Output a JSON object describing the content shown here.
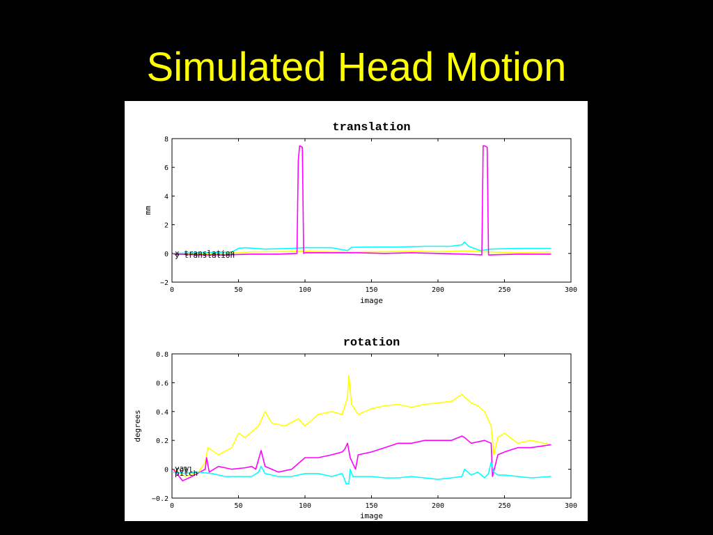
{
  "slide_title": "Simulated Head Motion",
  "colors": {
    "background": "#000000",
    "title": "#ffff00",
    "panel": "#ffffff",
    "series_yellow": "#ffff00",
    "series_magenta": "#ff00ff",
    "series_cyan": "#00ffff"
  },
  "chart_data": [
    {
      "type": "line",
      "title": "translation",
      "xlabel": "image",
      "ylabel": "mm",
      "xlim": [
        0,
        300
      ],
      "ylim": [
        -2,
        8
      ],
      "xticks": [
        0,
        50,
        100,
        150,
        200,
        250,
        300
      ],
      "yticks": [
        -2,
        0,
        2,
        4,
        6,
        8
      ],
      "grid": false,
      "legend_text": [
        "x translation",
        "y translation"
      ],
      "series": [
        {
          "color": "#ffff00",
          "x": [
            1,
            20,
            40,
            50,
            60,
            80,
            100,
            120,
            140,
            160,
            180,
            200,
            220,
            240,
            260,
            285
          ],
          "y": [
            0.0,
            -0.05,
            0.02,
            0.05,
            0.1,
            0.12,
            0.15,
            0.12,
            0.1,
            0.12,
            0.15,
            0.12,
            0.18,
            0.1,
            0.05,
            0.1
          ]
        },
        {
          "color": "#00ffff",
          "x": [
            1,
            20,
            45,
            50,
            55,
            70,
            90,
            100,
            120,
            132,
            135,
            150,
            170,
            190,
            210,
            218,
            220,
            223,
            232,
            240,
            260,
            285
          ],
          "y": [
            0.0,
            0.05,
            0.1,
            0.35,
            0.4,
            0.3,
            0.35,
            0.4,
            0.4,
            0.2,
            0.42,
            0.45,
            0.45,
            0.5,
            0.5,
            0.6,
            0.8,
            0.5,
            0.2,
            0.3,
            0.35,
            0.35
          ]
        },
        {
          "color": "#ff00ff",
          "x": [
            1,
            20,
            40,
            60,
            80,
            94,
            95,
            96,
            98,
            99,
            100,
            120,
            140,
            160,
            180,
            200,
            220,
            233,
            234,
            235,
            237,
            238,
            240,
            260,
            285
          ],
          "y": [
            -0.05,
            -0.1,
            -0.1,
            -0.05,
            -0.05,
            0.0,
            6.5,
            7.5,
            7.4,
            0.0,
            0.05,
            0.05,
            0.05,
            0.0,
            0.05,
            0.0,
            -0.05,
            -0.1,
            7.5,
            7.5,
            7.4,
            -0.1,
            -0.1,
            -0.05,
            -0.05
          ]
        }
      ]
    },
    {
      "type": "line",
      "title": "rotation",
      "xlabel": "image",
      "ylabel": "degrees",
      "xlim": [
        0,
        300
      ],
      "ylim": [
        -0.2,
        0.8
      ],
      "xticks": [
        0,
        50,
        100,
        150,
        200,
        250,
        300
      ],
      "yticks": [
        -0.2,
        0,
        0.2,
        0.4,
        0.6,
        0.8
      ],
      "grid": false,
      "legend_text": [
        "yaw",
        "roll",
        "pitch"
      ],
      "series": [
        {
          "color": "#ffff00",
          "x": [
            1,
            10,
            20,
            25,
            27,
            35,
            45,
            50,
            55,
            65,
            70,
            75,
            85,
            95,
            100,
            110,
            120,
            128,
            132,
            133,
            135,
            140,
            150,
            160,
            170,
            180,
            190,
            200,
            210,
            218,
            220,
            225,
            230,
            235,
            240,
            242,
            245,
            250,
            260,
            270,
            285
          ],
          "y": [
            0.0,
            -0.05,
            -0.02,
            0.05,
            0.15,
            0.1,
            0.15,
            0.25,
            0.22,
            0.3,
            0.4,
            0.32,
            0.3,
            0.35,
            0.3,
            0.38,
            0.4,
            0.38,
            0.5,
            0.65,
            0.45,
            0.38,
            0.42,
            0.44,
            0.45,
            0.43,
            0.45,
            0.46,
            0.47,
            0.52,
            0.5,
            0.46,
            0.44,
            0.4,
            0.3,
            0.1,
            0.22,
            0.25,
            0.18,
            0.2,
            0.17
          ]
        },
        {
          "color": "#ff00ff",
          "x": [
            1,
            8,
            15,
            25,
            26,
            28,
            35,
            45,
            55,
            60,
            63,
            67,
            70,
            75,
            80,
            90,
            100,
            110,
            120,
            128,
            130,
            132,
            134,
            138,
            140,
            150,
            160,
            170,
            180,
            190,
            200,
            210,
            218,
            220,
            225,
            235,
            240,
            241,
            245,
            250,
            260,
            270,
            285
          ],
          "y": [
            0.0,
            -0.08,
            -0.05,
            0.0,
            0.08,
            -0.02,
            0.02,
            0.0,
            0.01,
            0.02,
            0.0,
            0.13,
            0.02,
            0.0,
            -0.02,
            0.0,
            0.08,
            0.08,
            0.1,
            0.12,
            0.14,
            0.18,
            0.08,
            0.0,
            0.1,
            0.12,
            0.15,
            0.18,
            0.18,
            0.2,
            0.2,
            0.2,
            0.23,
            0.22,
            0.18,
            0.2,
            0.18,
            -0.05,
            0.1,
            0.12,
            0.15,
            0.15,
            0.17
          ]
        },
        {
          "color": "#00ffff",
          "x": [
            1,
            10,
            20,
            30,
            40,
            50,
            60,
            65,
            67,
            70,
            80,
            90,
            100,
            110,
            120,
            128,
            131,
            133,
            134,
            136,
            140,
            150,
            160,
            170,
            180,
            190,
            200,
            210,
            218,
            220,
            225,
            230,
            235,
            238,
            240,
            242,
            245,
            250,
            260,
            270,
            285
          ],
          "y": [
            -0.02,
            -0.03,
            -0.02,
            -0.03,
            -0.05,
            -0.05,
            -0.05,
            -0.02,
            0.02,
            -0.03,
            -0.05,
            -0.05,
            -0.03,
            -0.03,
            -0.05,
            -0.03,
            -0.1,
            -0.1,
            0.0,
            -0.05,
            -0.05,
            -0.05,
            -0.06,
            -0.06,
            -0.05,
            -0.06,
            -0.07,
            -0.06,
            -0.05,
            0.0,
            -0.04,
            -0.02,
            -0.06,
            -0.03,
            0.05,
            -0.02,
            -0.04,
            -0.04,
            -0.05,
            -0.06,
            -0.05
          ]
        }
      ]
    }
  ]
}
